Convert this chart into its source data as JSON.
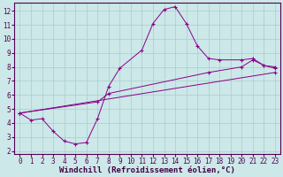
{
  "line1_x": [
    0,
    1,
    2,
    3,
    4,
    5,
    6,
    7,
    8,
    9,
    11,
    12,
    13,
    14,
    15,
    16,
    17,
    18,
    20,
    21,
    22,
    23
  ],
  "line1_y": [
    4.7,
    4.2,
    4.3,
    3.4,
    2.7,
    2.5,
    2.6,
    4.3,
    6.6,
    7.9,
    9.2,
    11.1,
    12.1,
    12.3,
    11.1,
    9.5,
    8.6,
    8.5,
    8.5,
    8.6,
    8.1,
    7.9
  ],
  "line2_x": [
    0,
    7,
    8,
    17,
    20,
    21,
    22,
    23
  ],
  "line2_y": [
    4.7,
    5.5,
    6.1,
    7.6,
    8.0,
    8.5,
    8.1,
    8.0
  ],
  "line3_x": [
    0,
    23
  ],
  "line3_y": [
    4.7,
    7.6
  ],
  "line_color": "#880088",
  "bg_color": "#cce8e8",
  "grid_color": "#aacccc",
  "xlabel": "Windchill (Refroidissement éolien,°C)",
  "xlim": [
    -0.5,
    23.5
  ],
  "ylim": [
    1.8,
    12.6
  ],
  "xticks": [
    0,
    1,
    2,
    3,
    4,
    5,
    6,
    7,
    8,
    9,
    10,
    11,
    12,
    13,
    14,
    15,
    16,
    17,
    18,
    19,
    20,
    21,
    22,
    23
  ],
  "yticks": [
    2,
    3,
    4,
    5,
    6,
    7,
    8,
    9,
    10,
    11,
    12
  ],
  "xlabel_fontsize": 6.5,
  "tick_fontsize": 5.5
}
